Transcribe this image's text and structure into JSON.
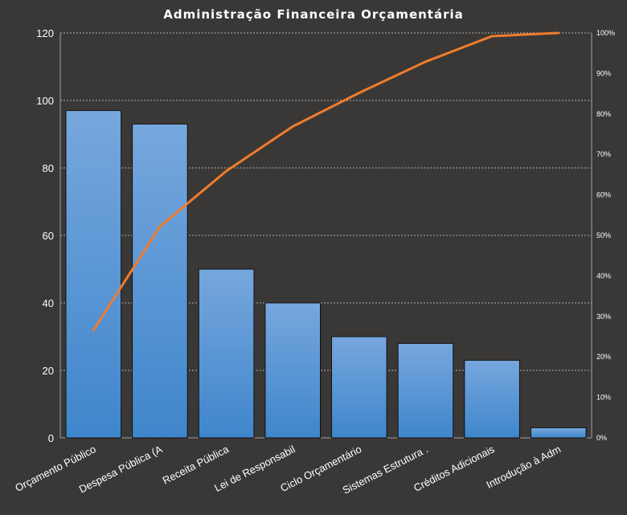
{
  "chart_data": {
    "type": "bar",
    "title": "Administração  Financeira  Orçamentária",
    "categories": [
      "Orçamento Público",
      "Despesa Pública (A",
      "Receita Pública",
      "Lei de Responsabil",
      "Ciclo Orçamentário",
      "Sistemas Estrutura .",
      "Créditos Adicionais",
      "Introdução à Adm"
    ],
    "values": [
      97,
      93,
      50,
      40,
      30,
      28,
      23,
      3
    ],
    "cumulative_percent": [
      26.6,
      52.2,
      65.9,
      76.9,
      85.2,
      92.9,
      99.2,
      100
    ],
    "ylim": [
      0,
      120
    ],
    "yticks": [
      0,
      20,
      40,
      60,
      80,
      100,
      120
    ],
    "y2lim": [
      0,
      100
    ],
    "y2ticks": [
      "0%",
      "10%",
      "20%",
      "30%",
      "40%",
      "50%",
      "60%",
      "70%",
      "80%",
      "90%",
      "100%"
    ],
    "xlabel": "",
    "ylabel": "",
    "grid": true,
    "legend": "none",
    "colors": {
      "background": "#3a3836",
      "bar_top": "#77a7dd",
      "bar_bottom": "#3f86cc",
      "line": "#ef7c2c",
      "text": "#ffffff"
    }
  }
}
